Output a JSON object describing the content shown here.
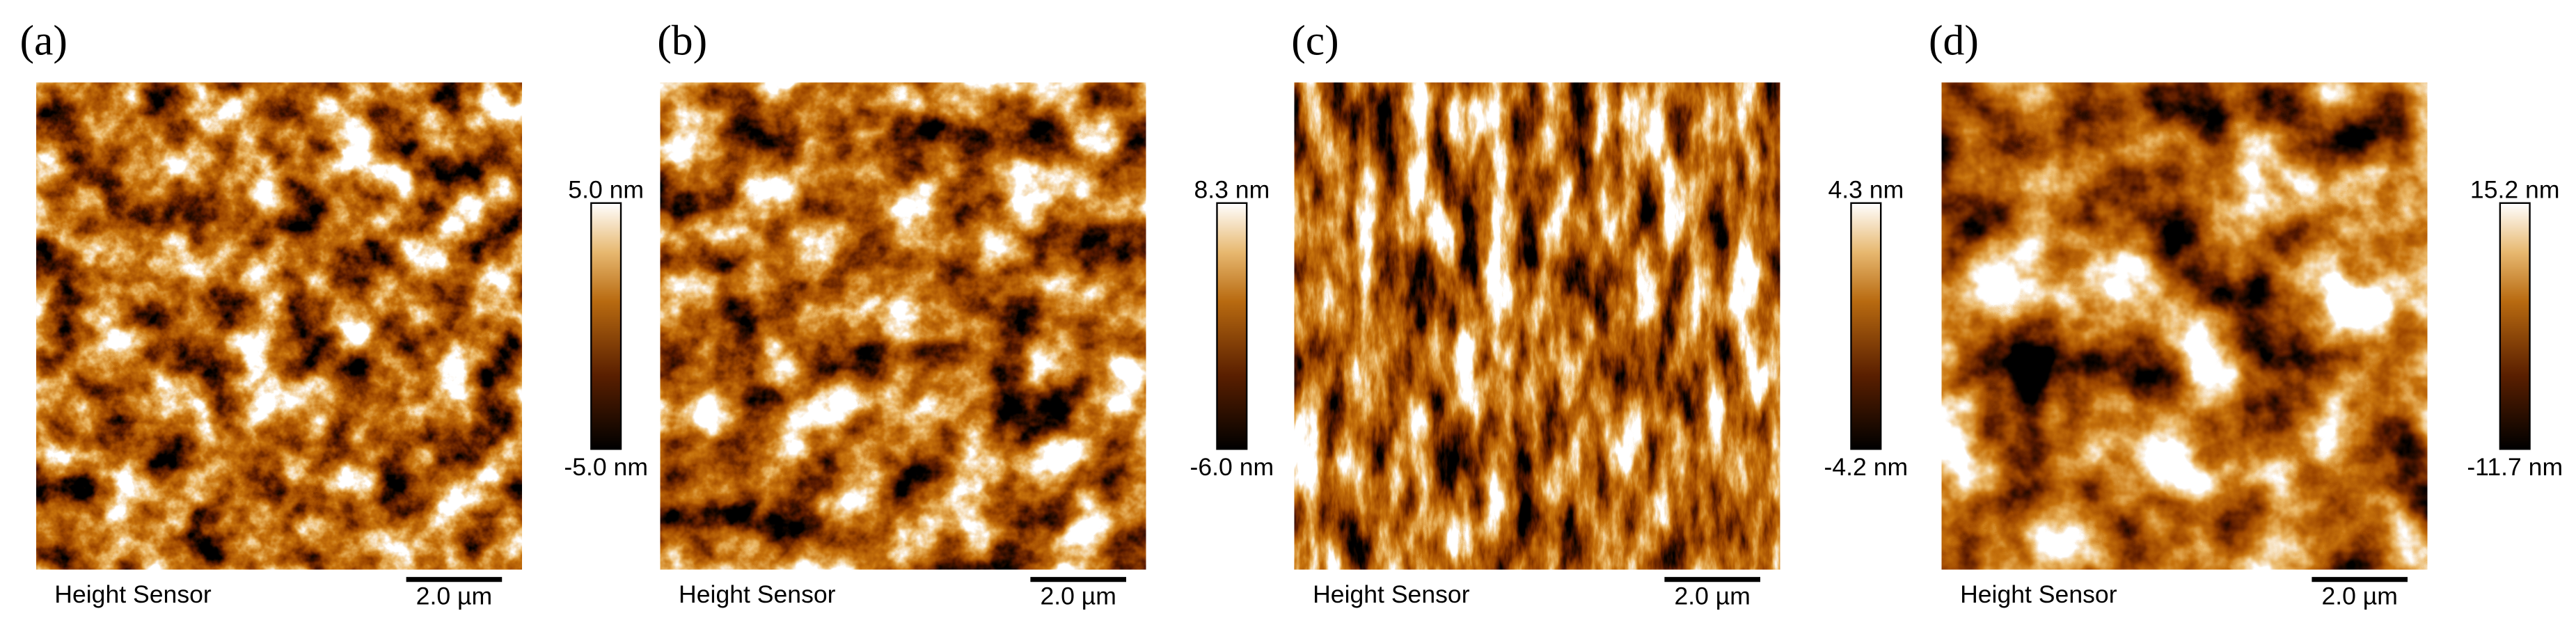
{
  "panels": [
    {
      "label": "(a)",
      "colorbar_max": "5.0 nm",
      "colorbar_min": "-5.0 nm",
      "channel": "Height Sensor",
      "scale_bar": "2.0 µm"
    },
    {
      "label": "(b)",
      "colorbar_max": "8.3 nm",
      "colorbar_min": "-6.0 nm",
      "channel": "Height Sensor",
      "scale_bar": "2.0 µm"
    },
    {
      "label": "(c)",
      "colorbar_max": "4.3 nm",
      "colorbar_min": "-4.2 nm",
      "channel": "Height Sensor",
      "scale_bar": "2.0 µm"
    },
    {
      "label": "(d)",
      "colorbar_max": "15.2 nm",
      "colorbar_min": "-11.7 nm",
      "channel": "Height Sensor",
      "scale_bar": "2.0 µm"
    }
  ]
}
